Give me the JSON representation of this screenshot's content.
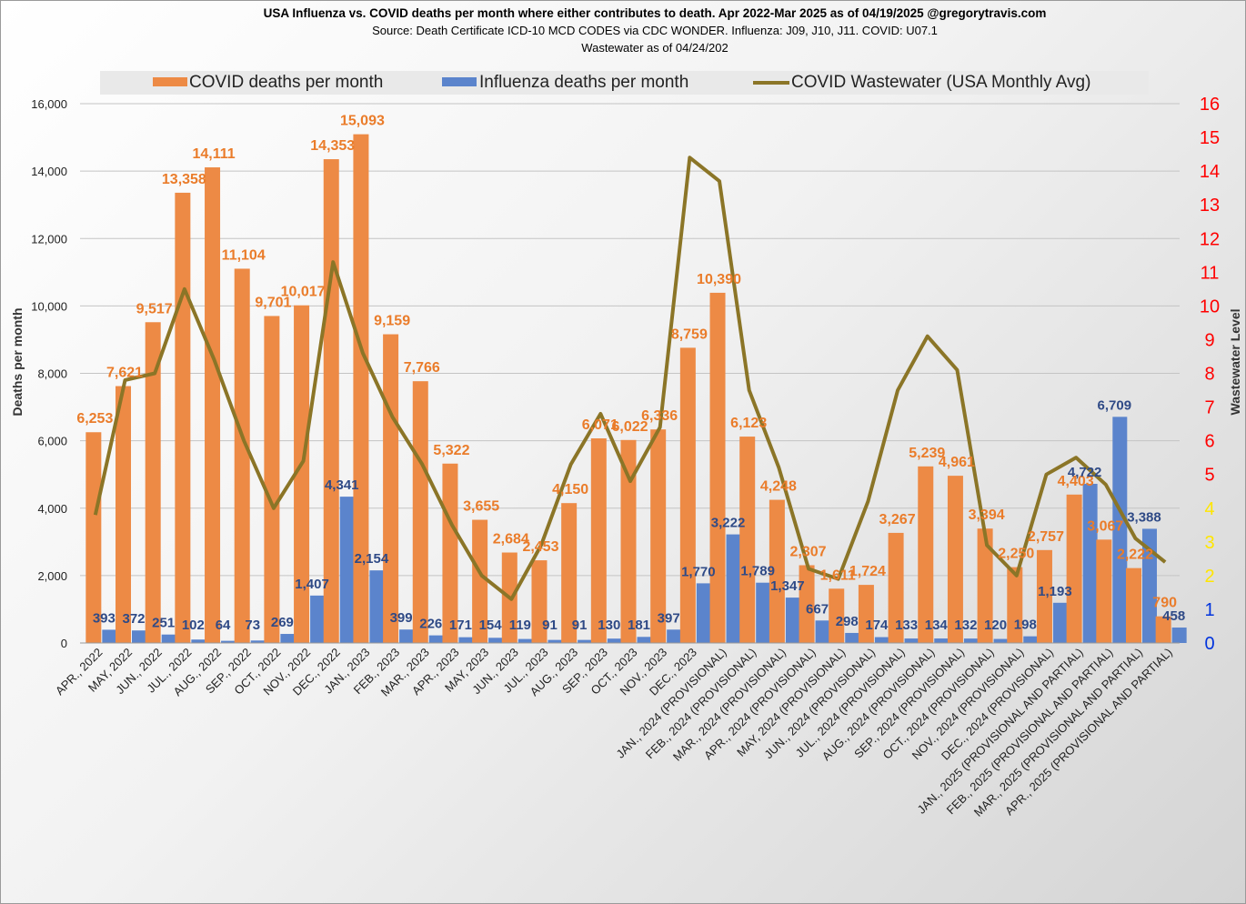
{
  "title_line1": "USA Influenza vs. COVID deaths per month where either contributes to death.  Apr 2022-Mar 2025 as of 04/19/2025 @gregorytravis.com",
  "title_line2": "Source: Death Certificate ICD-10 MCD CODES via CDC WONDER.  Influenza: J09, J10, J11.  COVID: U07.1",
  "title_line3": "Wastewater as of 04/24/202",
  "colors": {
    "covid": "#ED8A45",
    "flu": "#5B84CC",
    "wastewater": "#8B7527",
    "covid_label": "#EA7C2A",
    "flu_label": "#2F4A86",
    "right_red": "#FF0000",
    "right_yellow": "#FFE600",
    "right_blue": "#0033DD"
  },
  "legend": {
    "covid": "COVID deaths per month",
    "flu": "Influenza deaths per month",
    "wastewater": "COVID Wastewater (USA Monthly Avg)"
  },
  "chart_data": {
    "type": "bar",
    "title": "USA Influenza vs. COVID deaths per month where either contributes to death.  Apr 2022-Mar 2025 as of 04/19/2025 @gregorytravis.com",
    "ylabel": "Deaths per month",
    "y2label": "Wastewater Level",
    "ylim": [
      0,
      16000
    ],
    "y2lim": [
      0,
      16
    ],
    "yticks": [
      "0",
      "2,000",
      "4,000",
      "6,000",
      "8,000",
      "10,000",
      "12,000",
      "14,000",
      "16,000"
    ],
    "y2ticks": [
      "0",
      "1",
      "2",
      "3",
      "4",
      "5",
      "6",
      "7",
      "8",
      "9",
      "10",
      "11",
      "12",
      "13",
      "14",
      "15",
      "16"
    ],
    "grid": true,
    "legend_position": "top",
    "categories": [
      "APR., 2022",
      "MAY, 2022",
      "JUN., 2022",
      "JUL., 2022",
      "AUG., 2022",
      "SEP., 2022",
      "OCT., 2022",
      "NOV., 2022",
      "DEC., 2022",
      "JAN., 2023",
      "FEB., 2023",
      "MAR., 2023",
      "APR., 2023",
      "MAY, 2023",
      "JUN., 2023",
      "JUL., 2023",
      "AUG., 2023",
      "SEP., 2023",
      "OCT., 2023",
      "NOV., 2023",
      "DEC., 2023",
      "JAN., 2024 (PROVISIONAL)",
      "FEB., 2024 (PROVISIONAL)",
      "MAR., 2024 (PROVISIONAL)",
      "APR., 2024 (PROVISIONAL)",
      "MAY, 2024 (PROVISIONAL)",
      "JUN., 2024 (PROVISIONAL)",
      "JUL., 2024 (PROVISIONAL)",
      "AUG., 2024 (PROVISIONAL)",
      "SEP., 2024 (PROVISIONAL)",
      "OCT., 2024 (PROVISIONAL)",
      "NOV., 2024 (PROVISIONAL)",
      "DEC., 2024 (PROVISIONAL)",
      "JAN., 2025 (PROVISIONAL AND PARTIAL)",
      "FEB., 2025 (PROVISIONAL AND PARTIAL)",
      "MAR., 2025 (PROVISIONAL AND PARTIAL)",
      "APR., 2025 (PROVISIONAL AND PARTIAL)"
    ],
    "series": [
      {
        "name": "COVID deaths per month",
        "type": "bar",
        "values": [
          6253,
          7621,
          9517,
          13358,
          14111,
          11104,
          9701,
          10017,
          14353,
          15093,
          9159,
          7766,
          5322,
          3655,
          2684,
          2453,
          4150,
          6071,
          6022,
          6336,
          8759,
          10390,
          6123,
          4248,
          2307,
          1611,
          1724,
          3267,
          5239,
          4961,
          3394,
          2250,
          2757,
          4403,
          3067,
          2222,
          790
        ],
        "labels": [
          "6,253",
          "7,621",
          "9,517",
          "13,358",
          "14,111",
          "11,104",
          "9,701",
          "10,017",
          "14,353",
          "15,093",
          "9,159",
          "7,766",
          "5,322",
          "3,655",
          "2,684",
          "2,453",
          "4,150",
          "6,071",
          "6,022",
          "6,336",
          "8,759",
          "10,390",
          "6,123",
          "4,248",
          "2,307",
          "1,611",
          "1,724",
          "3,267",
          "5,239",
          "4,961",
          "3,394",
          "2,250",
          "2,757",
          "4,403",
          "3,067",
          "2,222",
          "790"
        ]
      },
      {
        "name": "Influenza deaths per month",
        "type": "bar",
        "values": [
          393,
          372,
          251,
          102,
          64,
          73,
          269,
          1407,
          4341,
          2154,
          399,
          226,
          171,
          154,
          119,
          91,
          91,
          130,
          181,
          397,
          1770,
          3222,
          1789,
          1347,
          667,
          298,
          174,
          133,
          134,
          132,
          120,
          198,
          1193,
          4722,
          6709,
          3388,
          458
        ],
        "labels": [
          "393",
          "372",
          "251",
          "102",
          "64",
          "73",
          "269",
          "1,407",
          "4,341",
          "2,154",
          "399",
          "226",
          "171",
          "154",
          "119",
          "91",
          "91",
          "130",
          "181",
          "397",
          "1,770",
          "3,222",
          "1,789",
          "1,347",
          "667",
          "298",
          "174",
          "133",
          "134",
          "132",
          "120",
          "198",
          "1,193",
          "4,722",
          "6,709",
          "3,388",
          "458"
        ]
      },
      {
        "name": "COVID Wastewater (USA Monthly Avg)",
        "type": "line",
        "axis": "right",
        "values": [
          3.8,
          7.8,
          8.0,
          10.5,
          8.4,
          6.0,
          4.0,
          5.4,
          11.3,
          8.6,
          6.7,
          5.3,
          3.5,
          2.0,
          1.3,
          2.9,
          5.3,
          6.8,
          4.8,
          6.4,
          14.4,
          13.7,
          7.5,
          5.2,
          2.2,
          1.9,
          4.2,
          7.5,
          9.1,
          8.1,
          2.9,
          2.0,
          5.0,
          5.5,
          4.7,
          3.1,
          2.4
        ]
      }
    ]
  }
}
